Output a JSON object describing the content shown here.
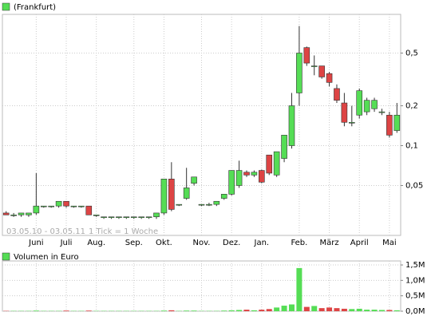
{
  "chart_data": [
    {
      "type": "candlestick",
      "title": "(Frankfurt)",
      "date_range": "03.05.10 - 03.05.11",
      "tick_note": "1 Tick = 1 Woche",
      "up_color": "#55dd55",
      "down_color": "#dd4444",
      "log_scale": true,
      "grid": true,
      "categories": [
        null,
        null,
        null,
        null,
        "Juni",
        null,
        null,
        null,
        "Juli",
        null,
        null,
        null,
        "Aug.",
        null,
        null,
        null,
        null,
        "Sep.",
        null,
        null,
        null,
        "Okt.",
        null,
        null,
        null,
        null,
        "Nov.",
        null,
        null,
        null,
        "Dez.",
        null,
        null,
        null,
        "Jan.",
        null,
        null,
        null,
        null,
        "Feb.",
        null,
        null,
        null,
        "März",
        null,
        null,
        null,
        "April",
        null,
        null,
        null,
        "Mai",
        null
      ],
      "open": [
        0.031,
        0.03,
        0.03,
        0.03,
        0.031,
        0.035,
        0.035,
        0.035,
        0.038,
        0.035,
        0.035,
        0.035,
        0.03,
        0.029,
        0.029,
        0.029,
        0.029,
        0.029,
        0.029,
        0.029,
        0.029,
        0.031,
        0.056,
        0.036,
        0.04,
        0.052,
        0.036,
        0.036,
        0.036,
        0.04,
        0.043,
        0.05,
        0.063,
        0.06,
        0.065,
        0.085,
        0.06,
        0.08,
        0.1,
        0.25,
        0.55,
        0.4,
        0.4,
        0.35,
        0.27,
        0.21,
        0.15,
        0.17,
        0.18,
        0.19,
        0.18,
        0.17,
        0.13
      ],
      "high": [
        0.032,
        0.031,
        0.031,
        0.031,
        0.062,
        0.035,
        0.035,
        0.038,
        0.038,
        0.035,
        0.035,
        0.035,
        0.03,
        0.029,
        0.029,
        0.029,
        0.029,
        0.029,
        0.029,
        0.029,
        0.031,
        0.056,
        0.075,
        0.036,
        0.068,
        0.058,
        0.036,
        0.037,
        0.038,
        0.043,
        0.065,
        0.077,
        0.065,
        0.065,
        0.066,
        0.085,
        0.09,
        0.12,
        0.25,
        0.8,
        0.56,
        0.48,
        0.4,
        0.36,
        0.29,
        0.25,
        0.2,
        0.27,
        0.23,
        0.23,
        0.19,
        0.18,
        0.21
      ],
      "low": [
        0.03,
        0.029,
        0.029,
        0.029,
        0.03,
        0.034,
        0.034,
        0.034,
        0.034,
        0.034,
        0.034,
        0.03,
        0.029,
        0.028,
        0.028,
        0.028,
        0.028,
        0.028,
        0.028,
        0.028,
        0.028,
        0.03,
        0.032,
        0.035,
        0.039,
        0.05,
        0.035,
        0.035,
        0.035,
        0.039,
        0.042,
        0.048,
        0.058,
        0.058,
        0.052,
        0.06,
        0.058,
        0.075,
        0.095,
        0.2,
        0.4,
        0.34,
        0.32,
        0.28,
        0.21,
        0.14,
        0.14,
        0.16,
        0.17,
        0.18,
        0.17,
        0.115,
        0.125
      ],
      "close": [
        0.03,
        0.03,
        0.031,
        0.031,
        0.035,
        0.035,
        0.035,
        0.038,
        0.035,
        0.035,
        0.035,
        0.03,
        0.03,
        0.029,
        0.029,
        0.029,
        0.029,
        0.029,
        0.029,
        0.029,
        0.031,
        0.056,
        0.033,
        0.036,
        0.048,
        0.058,
        0.036,
        0.036,
        0.038,
        0.043,
        0.065,
        0.065,
        0.06,
        0.063,
        0.053,
        0.062,
        0.09,
        0.12,
        0.2,
        0.5,
        0.42,
        0.4,
        0.33,
        0.3,
        0.22,
        0.15,
        0.15,
        0.26,
        0.22,
        0.22,
        0.18,
        0.12,
        0.17
      ],
      "ylim": [
        0.021,
        0.98
      ],
      "yticks": [
        {
          "value": 0.05,
          "label": "0,05"
        },
        {
          "value": 0.1,
          "label": "0,1"
        },
        {
          "value": 0.2,
          "label": "0,2"
        },
        {
          "value": 0.5,
          "label": "0,5"
        }
      ]
    },
    {
      "type": "bar",
      "title": "Volumen in Euro",
      "grid": true,
      "values": [
        0.01,
        0.01,
        0.01,
        0.01,
        0.02,
        0.01,
        0.01,
        0.01,
        0.02,
        0.01,
        0.01,
        0.02,
        0.01,
        0.01,
        0.01,
        0.01,
        0.01,
        0.01,
        0.01,
        0.01,
        0.01,
        0.02,
        0.03,
        0.01,
        0.02,
        0.02,
        0.01,
        0.01,
        0.01,
        0.02,
        0.03,
        0.04,
        0.05,
        0.03,
        0.05,
        0.07,
        0.12,
        0.18,
        0.22,
        1.4,
        0.14,
        0.17,
        0.1,
        0.12,
        0.1,
        0.08,
        0.07,
        0.08,
        0.05,
        0.05,
        0.04,
        0.04,
        0.03
      ],
      "ylim": [
        0,
        1.63
      ],
      "yticks": [
        {
          "value": 0,
          "label": "0,0M"
        },
        {
          "value": 0.5,
          "label": "0,5M"
        },
        {
          "value": 1,
          "label": "1,0M"
        },
        {
          "value": 1.5,
          "label": "1,5M"
        }
      ]
    }
  ]
}
